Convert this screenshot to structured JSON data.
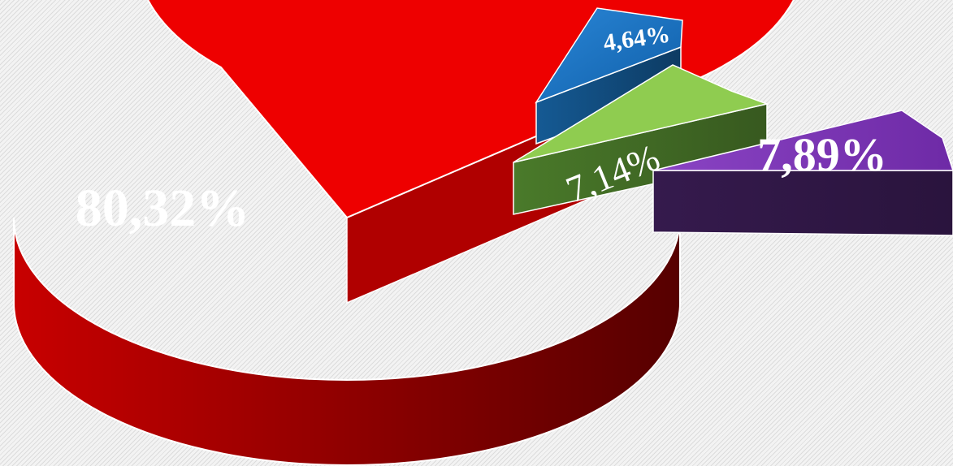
{
  "chart_data": {
    "type": "pie",
    "style": "3d-exploded",
    "slices": [
      {
        "label": "80,32%",
        "value": 80.32,
        "color": "#ee0000"
      },
      {
        "label": "4,64%",
        "value": 4.64,
        "color": "#1f77c8"
      },
      {
        "label": "7,14%",
        "value": 7.14,
        "color": "#8fcc50"
      },
      {
        "label": "7,89%",
        "value": 7.89,
        "color": "#7a35b0"
      }
    ],
    "grid": false,
    "legend": "none"
  }
}
